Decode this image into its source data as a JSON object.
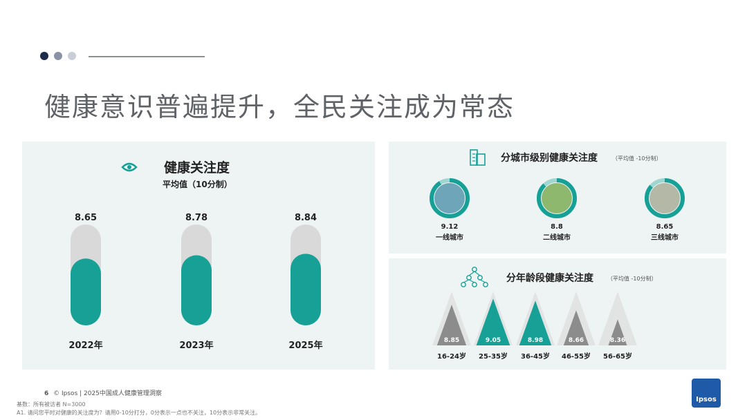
{
  "colors": {
    "teal": "#17a096",
    "teal_light": "#9fd6d0",
    "gray": "#d9d9d9",
    "dark_gray": "#8c8c8c",
    "navy": "#1c2b4a",
    "panel_bg": "#eef4f4"
  },
  "title": "健康意识普遍提升，全民关注成为常态",
  "left_chart": {
    "icon": "eye-icon",
    "heading": "健康关注度",
    "subheading": "平均值（10分制）"
  },
  "city_chart": {
    "icon": "building-icon",
    "heading": "分城市级别健康关注度",
    "note": "（平均值 -10分制）"
  },
  "age_chart": {
    "icon": "people-network-icon",
    "heading": "分年龄段健康关注度",
    "note": "（平均值 -10分制）"
  },
  "chart_data": [
    {
      "type": "bar",
      "title": "健康关注度",
      "subtitle": "平均值（10分制）",
      "categories": [
        "2022年",
        "2023年",
        "2025年"
      ],
      "values": [
        8.65,
        8.78,
        8.84
      ],
      "ylim": [
        0,
        10
      ]
    },
    {
      "type": "bar",
      "title": "分城市级别健康关注度",
      "categories": [
        "一线城市",
        "二线城市",
        "三线城市"
      ],
      "values": [
        9.12,
        8.8,
        8.65
      ],
      "value_labels": [
        "9.12",
        "8.8",
        "8.65"
      ],
      "ylim": [
        0,
        10
      ]
    },
    {
      "type": "bar",
      "title": "分年龄段健康关注度",
      "categories": [
        "16-24岁",
        "25-35岁",
        "36-45岁",
        "46-55岁",
        "56-65岁"
      ],
      "values": [
        8.85,
        9.05,
        8.98,
        8.66,
        8.36
      ],
      "value_labels": [
        "8.85",
        "9.05",
        "8.98",
        "8.66",
        "8.36"
      ],
      "highlight": [
        false,
        true,
        true,
        false,
        false
      ],
      "ylim": [
        0,
        10
      ]
    }
  ],
  "footer": {
    "page": "6",
    "source": "© Ipsos | 2025中国成人健康管理洞察"
  },
  "notes": {
    "base": "基数：所有被访者 N=3000",
    "question": "A1. 请问您平时对健康的关注度为？请用0-10分打分，0分表示一点也不关注，10分表示非常关注。"
  },
  "logo": "Ipsos"
}
